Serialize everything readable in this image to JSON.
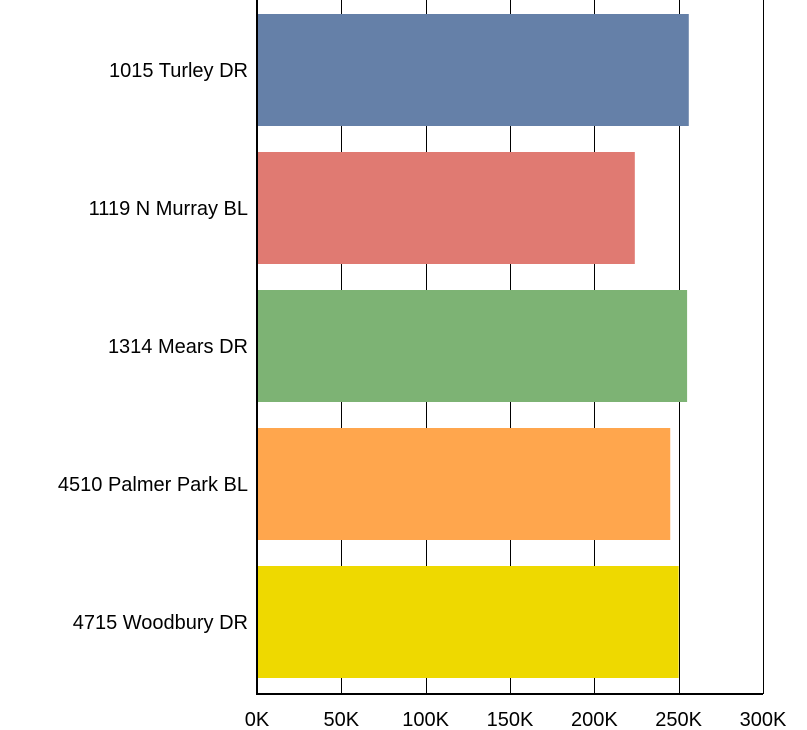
{
  "chart_data": {
    "type": "bar",
    "orientation": "horizontal",
    "categories": [
      "1015 Turley DR",
      "1119 N Murray BL",
      "1314 Mears DR",
      "4510 Palmer Park BL",
      "4715 Woodbury DR"
    ],
    "values": [
      256000,
      224000,
      255000,
      245000,
      250000
    ],
    "colors": [
      "#6580a8",
      "#e07a72",
      "#7db374",
      "#ffa64d",
      "#eed900"
    ],
    "xlim": [
      0,
      300000
    ],
    "xticks": [
      0,
      50000,
      100000,
      150000,
      200000,
      250000,
      300000
    ],
    "xtick_labels": [
      "0K",
      "50K",
      "100K",
      "150K",
      "200K",
      "250K",
      "300K"
    ],
    "grid": true,
    "title": "",
    "xlabel": "",
    "ylabel": ""
  }
}
